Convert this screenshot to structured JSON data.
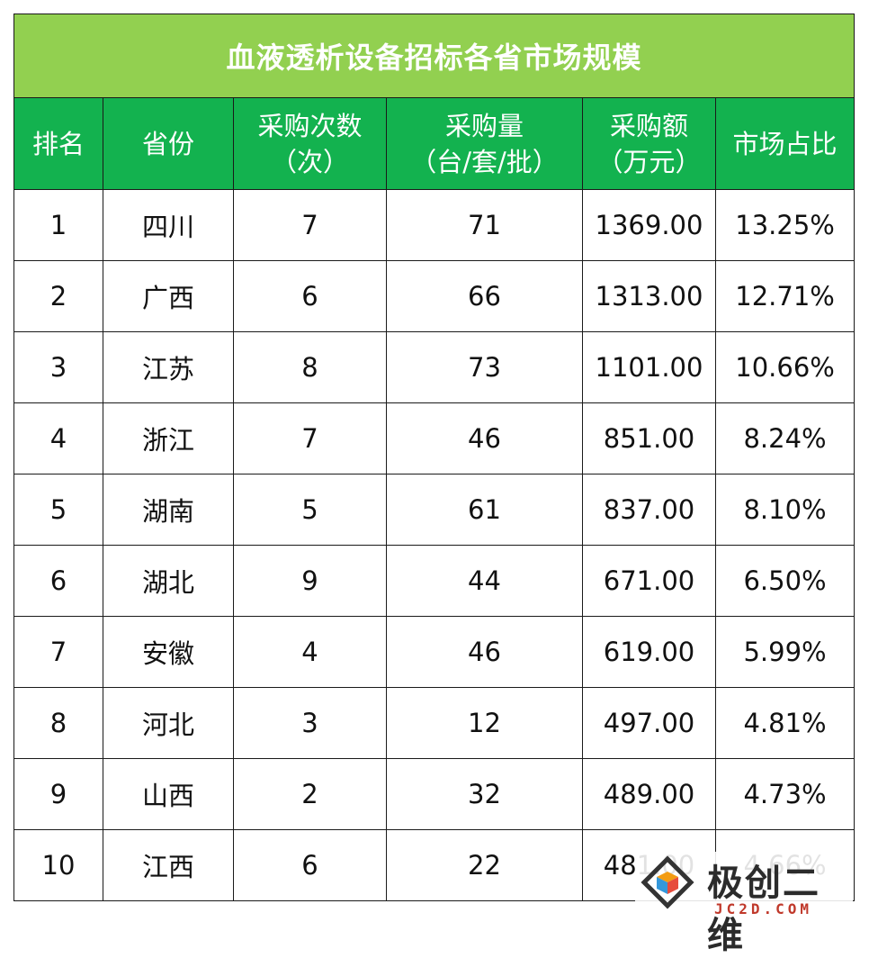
{
  "title": "血液透析设备招标各省市场规模",
  "headers": [
    {
      "line1": "排名",
      "line2": ""
    },
    {
      "line1": "省份",
      "line2": ""
    },
    {
      "line1": "采购次数",
      "line2": "（次）"
    },
    {
      "line1": "采购量",
      "line2": "（台/套/批）"
    },
    {
      "line1": "采购额",
      "line2": "（万元）"
    },
    {
      "line1": "市场占比",
      "line2": ""
    }
  ],
  "rows": [
    [
      "1",
      "四川",
      "7",
      "71",
      "1369.00",
      "13.25%"
    ],
    [
      "2",
      "广西",
      "6",
      "66",
      "1313.00",
      "12.71%"
    ],
    [
      "3",
      "江苏",
      "8",
      "73",
      "1101.00",
      "10.66%"
    ],
    [
      "4",
      "浙江",
      "7",
      "46",
      "851.00",
      "8.24%"
    ],
    [
      "5",
      "湖南",
      "5",
      "61",
      "837.00",
      "8.10%"
    ],
    [
      "6",
      "湖北",
      "9",
      "44",
      "671.00",
      "6.50%"
    ],
    [
      "7",
      "安徽",
      "4",
      "46",
      "619.00",
      "5.99%"
    ],
    [
      "8",
      "河北",
      "3",
      "12",
      "497.00",
      "4.81%"
    ],
    [
      "9",
      "山西",
      "2",
      "32",
      "489.00",
      "4.73%"
    ],
    [
      "10",
      "江西",
      "6",
      "22",
      "481.00",
      "4.66%"
    ]
  ],
  "watermark": {
    "text": "极创二维",
    "sub": "JC2D.COM"
  },
  "colors": {
    "title_bg": "#92d050",
    "header_bg": "#13b24f",
    "border": "#1a1a1a"
  }
}
